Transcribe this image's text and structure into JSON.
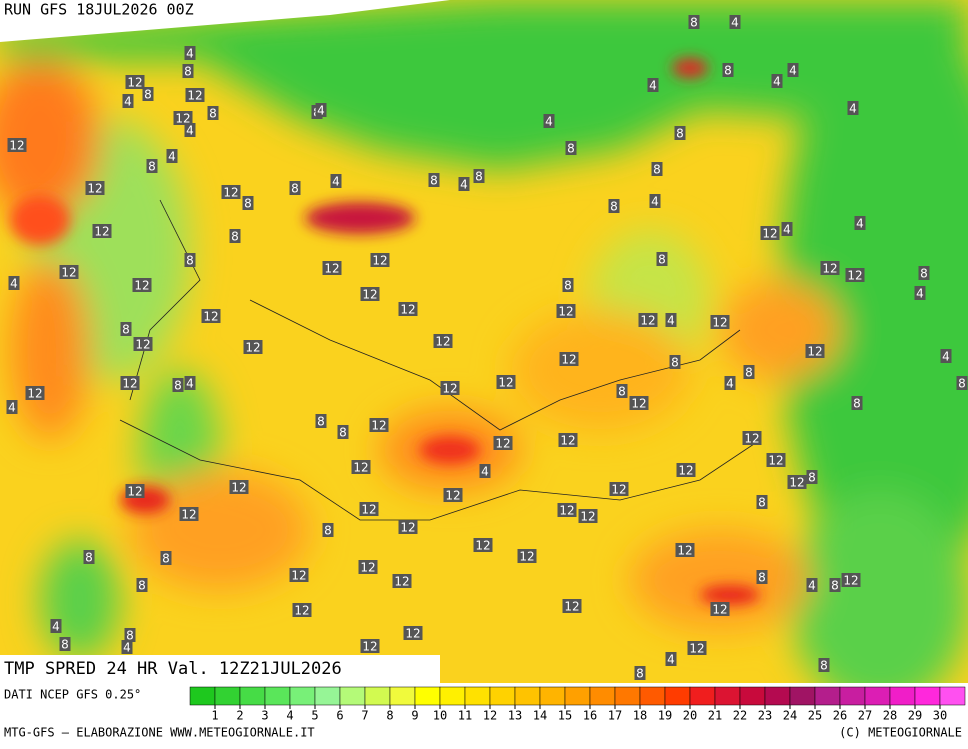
{
  "header": {
    "run": "RUN GFS 18JUL2026 00Z"
  },
  "map": {
    "title": "TMP SPRED 24 HR Val. 12Z21JUL2026",
    "labels": [
      8,
      4,
      4,
      8,
      8,
      4,
      4,
      4,
      12,
      8,
      12,
      4,
      8,
      12,
      4,
      8,
      4,
      4,
      4,
      8,
      12,
      8,
      4,
      8,
      8,
      4,
      8,
      4,
      8,
      12,
      12,
      8,
      8,
      8,
      4,
      4,
      12,
      8,
      12,
      4,
      8,
      12,
      12,
      8,
      12,
      12,
      12,
      8,
      12,
      8,
      12,
      4,
      4,
      12,
      12,
      12,
      12,
      4,
      12,
      8,
      12,
      12,
      12,
      12,
      12,
      8,
      4,
      12,
      8,
      4,
      12,
      12,
      8,
      4,
      8,
      8,
      12,
      12,
      8,
      4,
      8,
      8,
      12,
      12,
      12,
      12,
      12,
      12,
      12,
      4,
      8,
      12,
      12,
      12,
      12,
      12,
      8,
      12,
      12,
      12,
      12,
      8,
      12,
      12,
      12,
      12,
      8,
      8,
      12,
      12,
      8,
      12,
      8,
      4,
      8,
      12,
      12,
      12,
      12,
      4,
      8,
      4,
      8,
      12,
      12,
      12,
      4,
      8,
      8
    ],
    "labels_pad": null
  },
  "legend": {
    "source": "DATI NCEP GFS 0.25°",
    "levels": [
      1,
      2,
      3,
      4,
      5,
      6,
      7,
      8,
      9,
      10,
      11,
      12,
      13,
      14,
      15,
      16,
      17,
      18,
      19,
      20,
      21,
      22,
      23,
      24,
      25,
      26,
      27,
      28,
      29,
      30
    ],
    "colors": [
      "#1ec81e",
      "#32d232",
      "#46dc46",
      "#5ae65a",
      "#78f078",
      "#96f596",
      "#b4fa78",
      "#d2fa50",
      "#f0fa3c",
      "#ffff00",
      "#fff000",
      "#ffe100",
      "#ffd200",
      "#ffc300",
      "#ffb400",
      "#ffa000",
      "#ff8c00",
      "#ff7800",
      "#ff5a00",
      "#ff3c00",
      "#f01e1e",
      "#dc1432",
      "#c80a3c",
      "#b40a50",
      "#a01464",
      "#b41e8c",
      "#c81ea0",
      "#dc1eb4",
      "#f01ec8",
      "#ff28dc",
      "#ff50f0"
    ]
  },
  "footer": {
    "left": "MTG-GFS — ELABORAZIONE WWW.METEOGIORNALE.IT",
    "right": "(C) METEOGIORNALE"
  }
}
